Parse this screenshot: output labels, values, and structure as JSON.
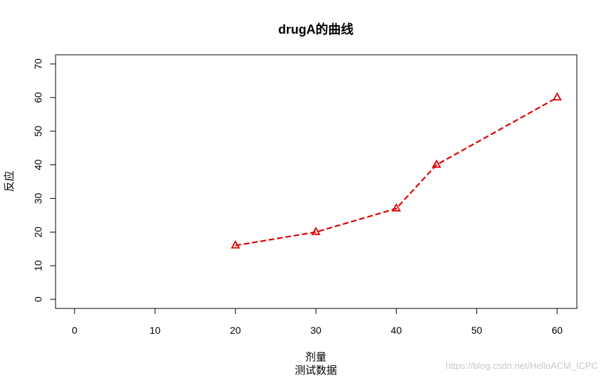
{
  "chart_data": {
    "type": "line",
    "title": "drugA的曲线",
    "xlabel": "剂量",
    "subtitle": "测试数据",
    "ylabel": "反应",
    "x": [
      20,
      30,
      40,
      45,
      60
    ],
    "series": [
      {
        "values": [
          16,
          20,
          27,
          40,
          60
        ],
        "color": "#e00000",
        "line_style": "dashed",
        "marker": "triangle-open"
      }
    ],
    "xlim": [
      0,
      60
    ],
    "ylim": [
      0,
      70
    ],
    "xticks": [
      "0",
      "10",
      "20",
      "30",
      "40",
      "50",
      "60"
    ],
    "yticks": [
      "0",
      "10",
      "20",
      "30",
      "40",
      "50",
      "60",
      "70"
    ],
    "grid": false
  },
  "watermark": "https://blog.csdn.net/HelloACM_ICPC"
}
